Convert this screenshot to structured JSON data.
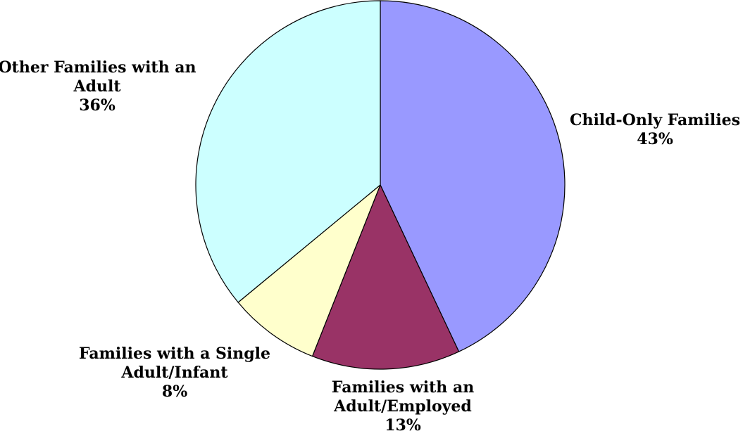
{
  "chart_data": {
    "type": "pie",
    "title": "",
    "start_angle_deg": 0,
    "direction": "clockwise",
    "slices": [
      {
        "name_lines": [
          "Child-Only Families"
        ],
        "value": 43,
        "value_label": "43%",
        "color": "#9999ff"
      },
      {
        "name_lines": [
          "Families with an",
          "Adult/Employed"
        ],
        "value": 13,
        "value_label": "13%",
        "color": "#993366"
      },
      {
        "name_lines": [
          "Families with a Single",
          "Adult/Infant"
        ],
        "value": 8,
        "value_label": "8%",
        "color": "#ffffcc"
      },
      {
        "name_lines": [
          "Other Families with an",
          "Adult"
        ],
        "value": 36,
        "value_label": "36%",
        "color": "#ccffff"
      }
    ]
  }
}
